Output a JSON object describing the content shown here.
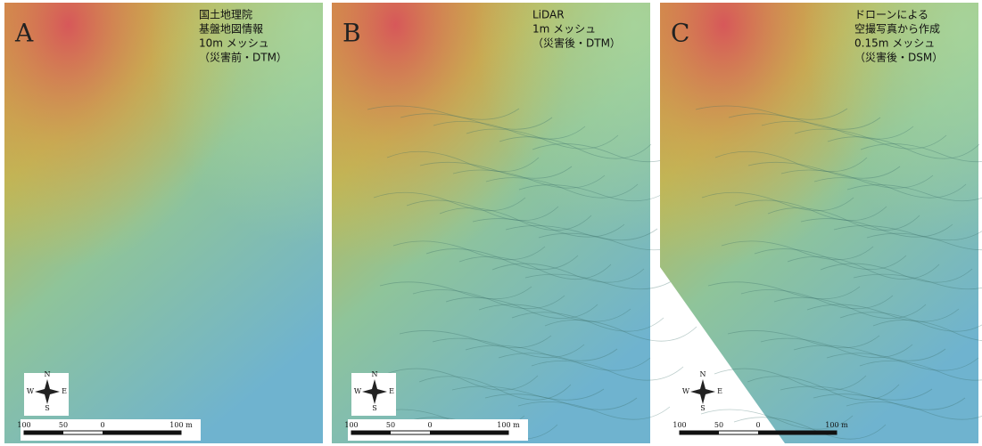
{
  "panels": [
    {
      "letter": "A",
      "lines": [
        "国土地理院",
        "基盤地図情報",
        "10m メッシュ",
        "（災害前・DTM）"
      ],
      "compass": [
        "N",
        "E",
        "S",
        "W"
      ],
      "scale": [
        "100",
        "50",
        "0",
        "100 m"
      ]
    },
    {
      "letter": "B",
      "lines": [
        "LiDAR",
        "1m メッシュ",
        "（災害後・DTM）"
      ],
      "compass": [
        "N",
        "E",
        "S",
        "W"
      ],
      "scale": [
        "100",
        "50",
        "0",
        "100 m"
      ]
    },
    {
      "letter": "C",
      "lines": [
        "ドローンによる",
        "空撮写真から作成",
        "0.15m メッシュ",
        "（災害後・DSM）"
      ],
      "compass": [
        "N",
        "E",
        "S",
        "W"
      ],
      "scale": [
        "100",
        "50",
        "0",
        "100 m"
      ]
    }
  ]
}
